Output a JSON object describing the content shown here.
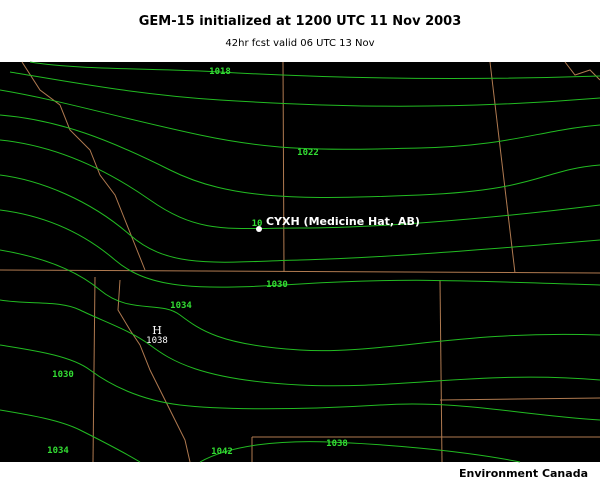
{
  "header": {
    "title": "GEM-15 initialized at 1200 UTC  11 Nov 2003",
    "subtitle": "42hr fcst valid 06 UTC 13 Nov"
  },
  "map": {
    "station": "CYXH (Medicine Hat, AB)",
    "high": {
      "symbol": "H",
      "value": "1038"
    },
    "contour_labels": [
      "1018",
      "1022",
      "10",
      "1030",
      "1034",
      "1030",
      "1034",
      "1042",
      "1038"
    ]
  },
  "footer": {
    "credit": "Environment Canada"
  }
}
